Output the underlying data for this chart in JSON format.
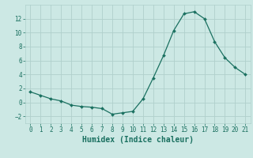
{
  "x": [
    0,
    1,
    2,
    3,
    4,
    5,
    6,
    7,
    8,
    9,
    10,
    11,
    12,
    13,
    14,
    15,
    16,
    17,
    18,
    19,
    20,
    21
  ],
  "y": [
    1.5,
    1.0,
    0.5,
    0.2,
    -0.4,
    -0.6,
    -0.7,
    -0.9,
    -1.7,
    -1.5,
    -1.3,
    0.5,
    3.5,
    6.7,
    10.3,
    12.7,
    13.0,
    12.0,
    8.7,
    6.4,
    5.0,
    4.0
  ],
  "line_color": "#1a7060",
  "marker_color": "#1a7060",
  "bg_color": "#cce8e4",
  "grid_color": "#b0d0cc",
  "xlabel": "Humidex (Indice chaleur)",
  "xlim": [
    -0.5,
    21.5
  ],
  "ylim": [
    -3,
    14
  ],
  "yticks": [
    -2,
    0,
    2,
    4,
    6,
    8,
    10,
    12
  ],
  "xticks": [
    0,
    1,
    2,
    3,
    4,
    5,
    6,
    7,
    8,
    9,
    10,
    11,
    12,
    13,
    14,
    15,
    16,
    17,
    18,
    19,
    20,
    21
  ],
  "tick_labelsize": 5.5,
  "xlabel_fontsize": 7.0
}
